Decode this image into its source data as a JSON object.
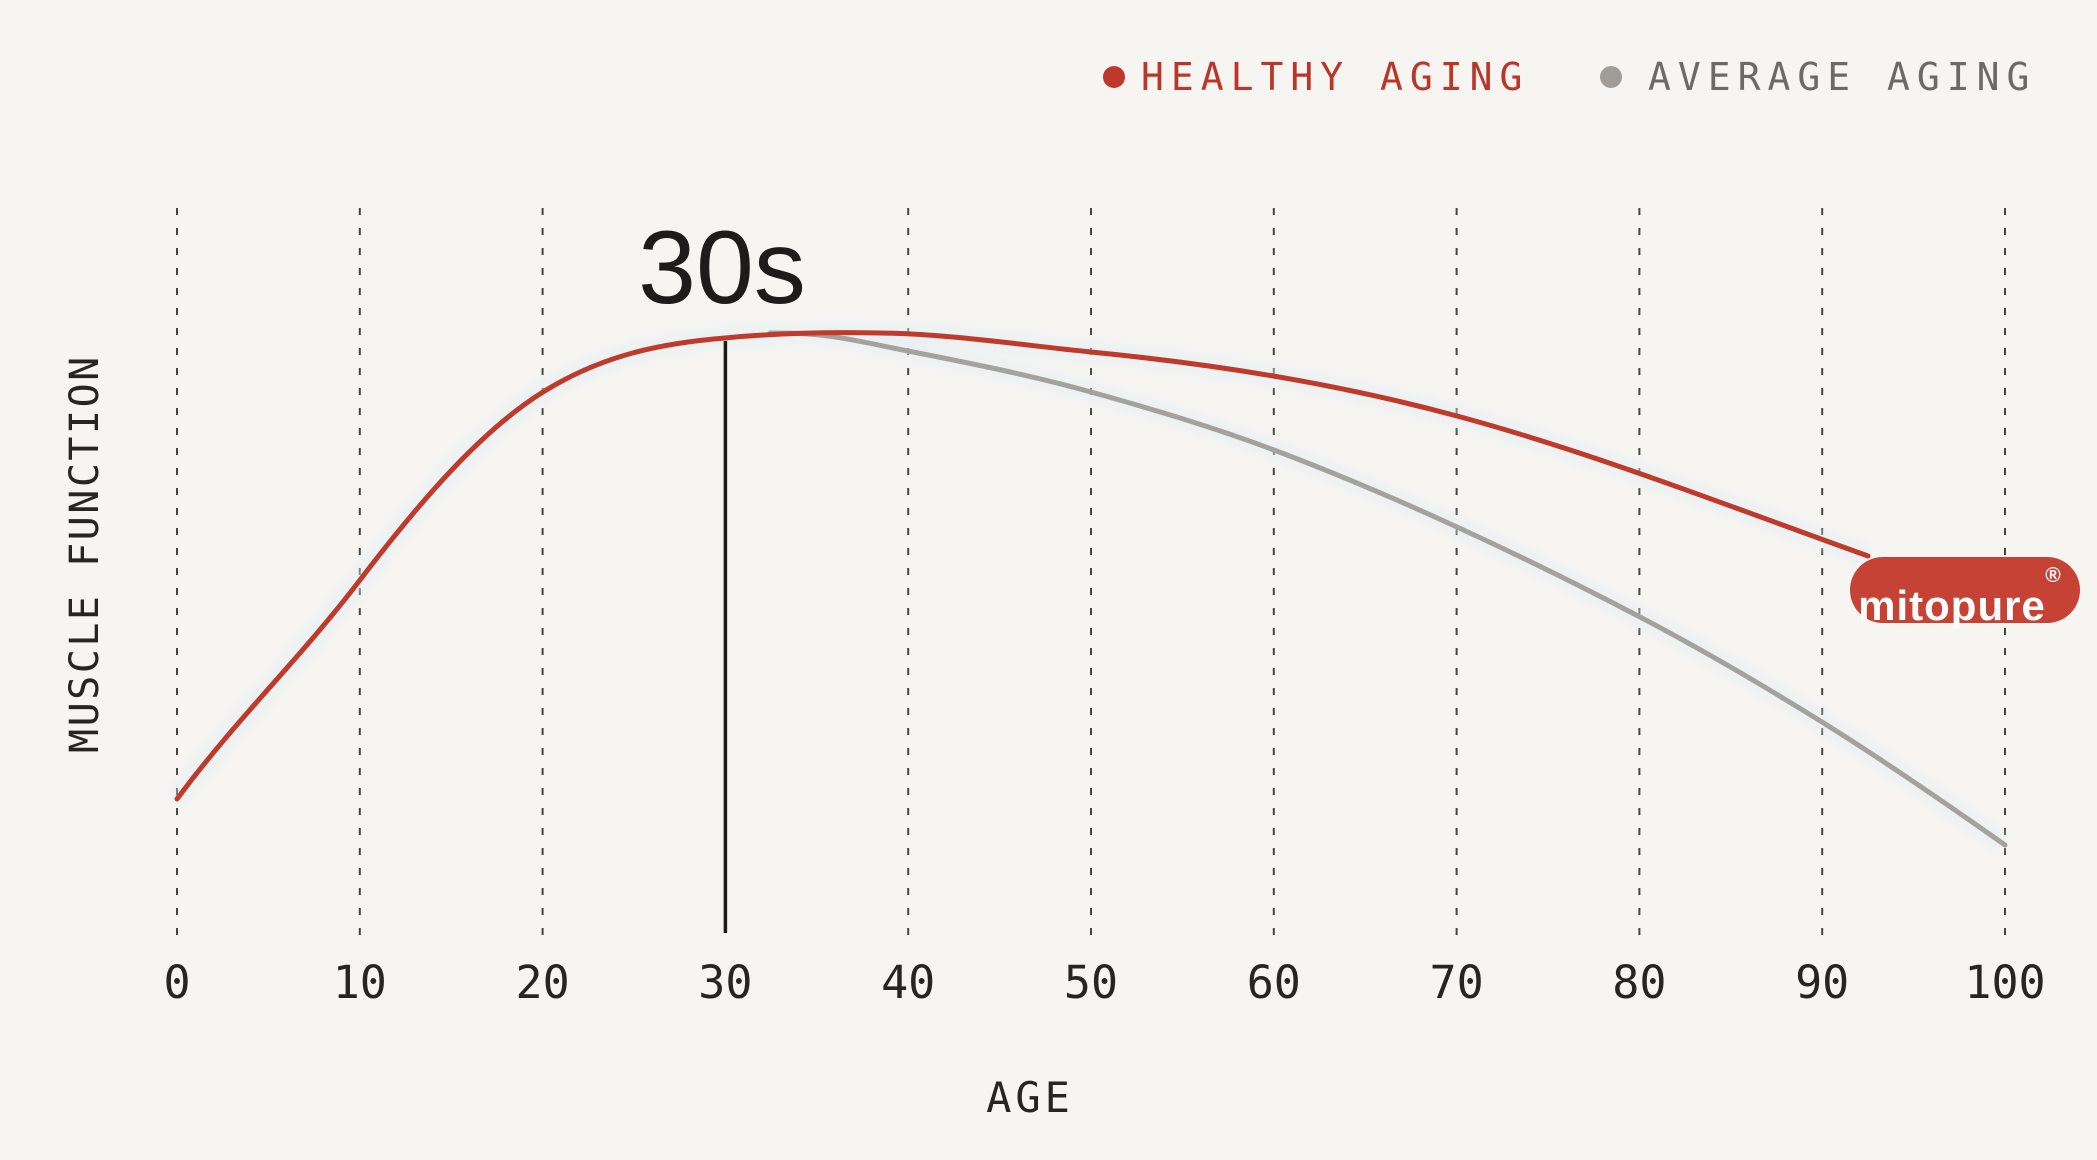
{
  "chart_data": {
    "type": "line",
    "title": "",
    "xlabel": "AGE",
    "ylabel": "MUSCLE FUNCTION",
    "x_ticks": [
      "0",
      "10",
      "20",
      "30",
      "40",
      "50",
      "60",
      "70",
      "80",
      "90",
      "100"
    ],
    "x_range": [
      0,
      100
    ],
    "y_axis_visible_scale": false,
    "grid": "vertical-dashed",
    "legend_position": "top-right",
    "annotation": {
      "peak_label": "30s",
      "peak_age": 30,
      "solid_marker_line_at_x": 30
    },
    "series": [
      {
        "name": "HEALTHY AGING",
        "color": "#bf3a2b",
        "x": [
          0,
          10,
          20,
          30,
          35,
          40,
          50,
          60,
          70,
          80,
          90,
          95
        ],
        "values": [
          23,
          59,
          90,
          99,
          100,
          99,
          97,
          92,
          86,
          76,
          65,
          63
        ],
        "note": "relative muscle function, % of peak (estimated from plot); curve ends at mitopure badge"
      },
      {
        "name": "AVERAGE AGING",
        "color": "#a5a29d",
        "x": [
          35,
          40,
          50,
          60,
          70,
          80,
          90,
          100
        ],
        "values": [
          100,
          97,
          90,
          80,
          68,
          53,
          36,
          15
        ],
        "note": "branches off healthy-aging curve at ~age 35 (estimated from plot)"
      }
    ]
  },
  "legend": {
    "items": [
      {
        "label": "HEALTHY AGING",
        "text_color": "#bb3629",
        "dot_color": "#bf382a"
      },
      {
        "label": "AVERAGE AGING",
        "text_color": "#6d6a66",
        "dot_color": "#a09d98"
      }
    ]
  },
  "axes": {
    "x_label": "AGE",
    "y_label": "MUSCLE FUNCTION",
    "x_ticks": [
      "0",
      "10",
      "20",
      "30",
      "40",
      "50",
      "60",
      "70",
      "80",
      "90",
      "100"
    ]
  },
  "annotation": {
    "peak_label": "30s"
  },
  "brand": {
    "name": "mitopure",
    "registered": "®",
    "badge_color": "#c54234",
    "text_color": "#ffffff"
  },
  "colors": {
    "healthy": "#bf3a2b",
    "average": "#a5a29d",
    "background": "#f6f5f2",
    "grid": "#45443f",
    "ink": "#262522",
    "marker_line": "#1b1a18",
    "halo": "#dfecf4"
  }
}
